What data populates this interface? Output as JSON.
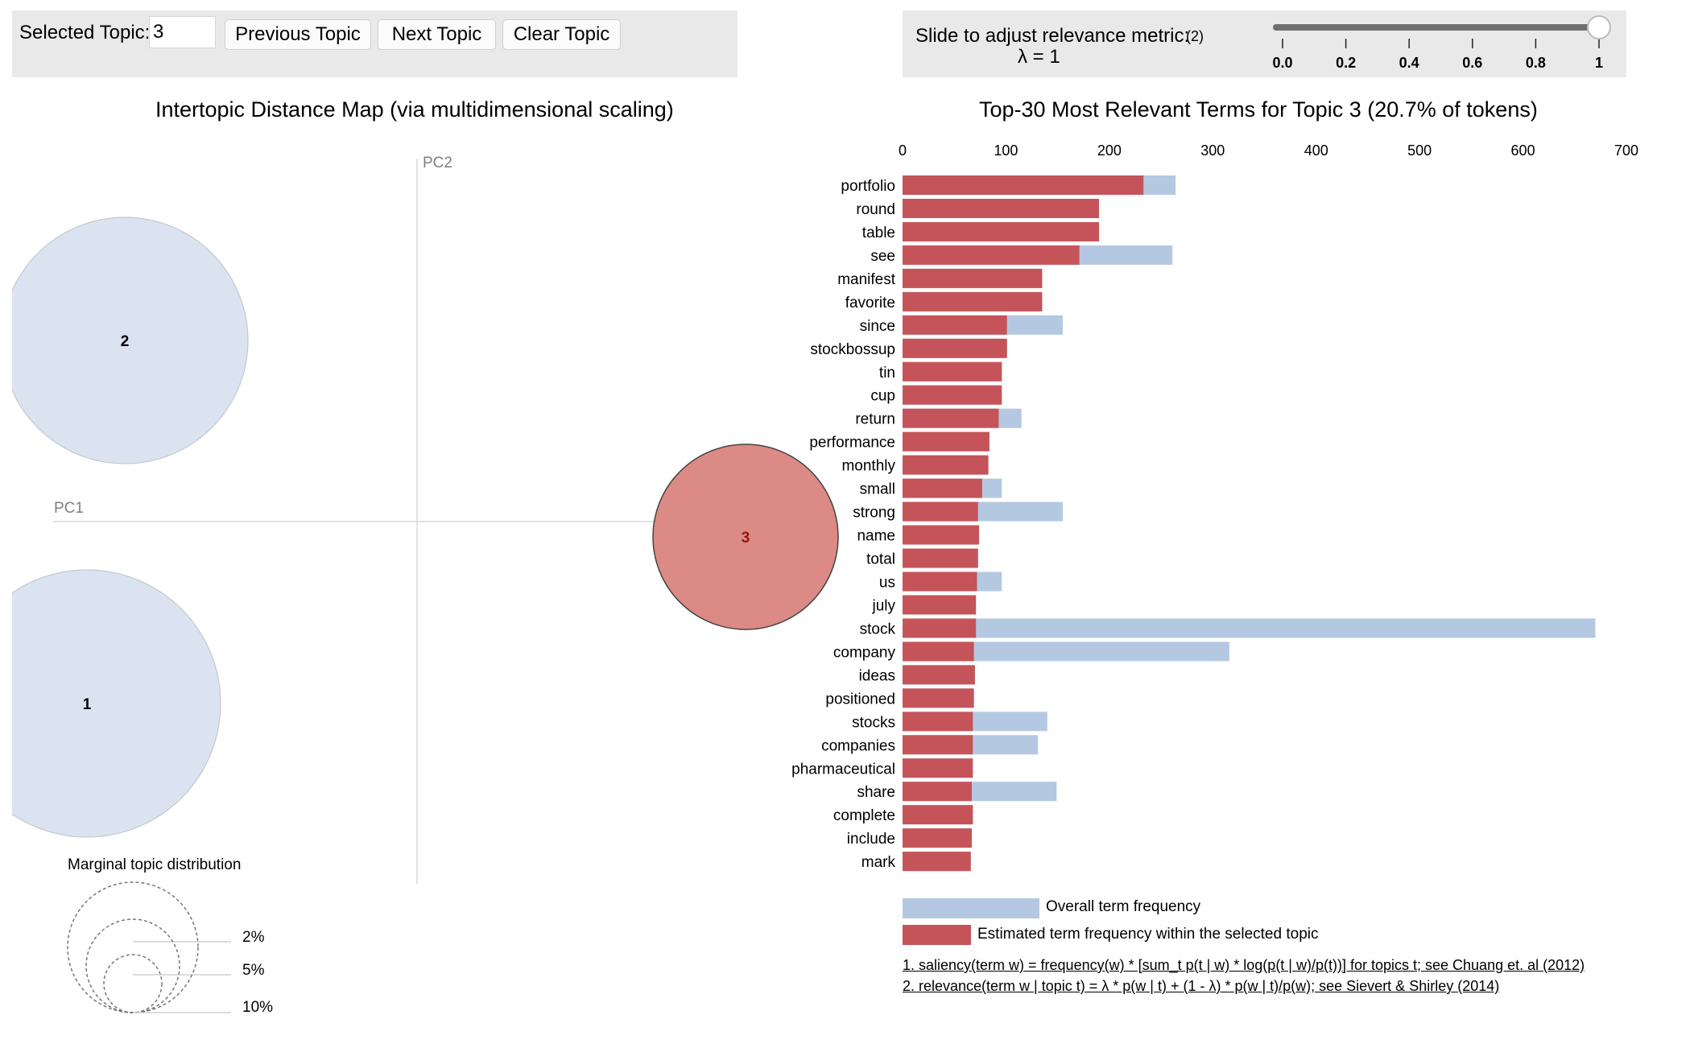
{
  "controls": {
    "selected_topic_label": "Selected Topic:",
    "selected_topic_value": "3",
    "prev_label": "Previous Topic",
    "next_label": "Next Topic",
    "clear_label": "Clear Topic"
  },
  "relevance": {
    "label": "Slide to adjust relevance metric:",
    "footnote_ref": "(2)",
    "lambda_text": "λ = 1",
    "lambda_value": 1,
    "ticks": [
      "0.0",
      "0.2",
      "0.4",
      "0.6",
      "0.8",
      "1"
    ]
  },
  "map": {
    "title": "Intertopic Distance Map (via multidimensional scaling)",
    "pc1_label": "PC1",
    "pc2_label": "PC2",
    "topics": [
      {
        "id": "2",
        "selected": false
      },
      {
        "id": "1",
        "selected": false
      },
      {
        "id": "3",
        "selected": true
      }
    ],
    "marginal": {
      "title": "Marginal topic distribution",
      "legend": [
        "2%",
        "5%",
        "10%"
      ]
    }
  },
  "chart_data": {
    "type": "bar",
    "orientation": "horizontal",
    "title": "Top-30 Most Relevant Terms for Topic 3 (20.7% of tokens)",
    "xlim": [
      0,
      700
    ],
    "xticks": [
      "0",
      "100",
      "200",
      "300",
      "400",
      "500",
      "600",
      "700"
    ],
    "categories": [
      "portfolio",
      "round",
      "table",
      "see",
      "manifest",
      "favorite",
      "since",
      "stockbossup",
      "tin",
      "cup",
      "return",
      "performance",
      "monthly",
      "small",
      "strong",
      "name",
      "total",
      "us",
      "july",
      "stock",
      "company",
      "ideas",
      "positioned",
      "stocks",
      "companies",
      "pharmaceutical",
      "share",
      "complete",
      "include",
      "mark"
    ],
    "series": [
      {
        "name": "Overall term frequency",
        "values": [
          264,
          190,
          190,
          261,
          135,
          135,
          155,
          101,
          96,
          96,
          115,
          84,
          83,
          96,
          155,
          74,
          73,
          96,
          71,
          670,
          316,
          70,
          69,
          140,
          131,
          68,
          149,
          68,
          67,
          66
        ]
      },
      {
        "name": "Estimated term frequency within the selected topic",
        "values": [
          233,
          190,
          190,
          171,
          135,
          135,
          101,
          101,
          96,
          96,
          93,
          84,
          83,
          77,
          73,
          74,
          73,
          72,
          71,
          71,
          69,
          70,
          69,
          68,
          68,
          68,
          67,
          68,
          67,
          66
        ]
      }
    ],
    "colors": {
      "overall": "#b4c9e1",
      "topic": "#c5545a"
    }
  },
  "legend": {
    "overall": "Overall term frequency",
    "topic": "Estimated term frequency within the selected topic"
  },
  "footnotes": {
    "saliency": "1. saliency(term w) = frequency(w) * [sum_t p(t | w) * log(p(t | w)/p(t))] for topics t; see Chuang et. al (2012)",
    "relevance": "2. relevance(term w | topic t) = λ * p(w | t) + (1 - λ) * p(w | t)/p(w); see Sievert & Shirley (2014)"
  }
}
